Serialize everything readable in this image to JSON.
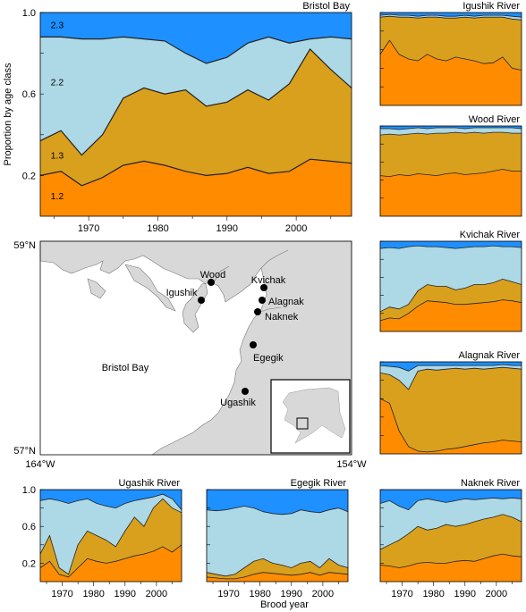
{
  "figure": {
    "ylabel": "Proportion by age class",
    "xlabel": "Brood year"
  },
  "colors": {
    "age_1_2": "#ff8c00",
    "age_1_3": "#d9a01e",
    "age_2_2": "#add8e6",
    "age_2_3": "#1e90ff",
    "land": "#d8d8d8",
    "water": "#ffffff"
  },
  "chart_data": [
    {
      "id": "bristol",
      "type": "area",
      "title": "Bristol Bay",
      "ylim": [
        0,
        1
      ],
      "yticks": [
        "0.2",
        "0.6",
        "1.0"
      ],
      "xlim": [
        1963,
        2008
      ],
      "xticks": [
        "1970",
        "1980",
        "1990",
        "2000"
      ],
      "band_labels": [
        "1.2",
        "1.3",
        "2.2",
        "2.3"
      ],
      "x": [
        1963,
        1966,
        1969,
        1972,
        1975,
        1978,
        1981,
        1984,
        1987,
        1990,
        1993,
        1996,
        1999,
        2002,
        2005,
        2008
      ],
      "series": [
        {
          "name": "1.2",
          "cum": [
            0.2,
            0.22,
            0.15,
            0.19,
            0.25,
            0.27,
            0.25,
            0.22,
            0.2,
            0.21,
            0.24,
            0.21,
            0.22,
            0.28,
            0.27,
            0.26
          ]
        },
        {
          "name": "1.3",
          "cum": [
            0.37,
            0.42,
            0.3,
            0.4,
            0.58,
            0.63,
            0.6,
            0.62,
            0.54,
            0.56,
            0.62,
            0.57,
            0.65,
            0.82,
            0.72,
            0.63
          ]
        },
        {
          "name": "2.2",
          "cum": [
            0.88,
            0.88,
            0.87,
            0.87,
            0.88,
            0.87,
            0.86,
            0.8,
            0.75,
            0.78,
            0.85,
            0.88,
            0.85,
            0.87,
            0.88,
            0.87
          ]
        },
        {
          "name": "2.3",
          "cum": [
            1,
            1,
            1,
            1,
            1,
            1,
            1,
            1,
            1,
            1,
            1,
            1,
            1,
            1,
            1,
            1
          ]
        }
      ]
    },
    {
      "id": "igushik",
      "type": "area",
      "title": "Igushik River",
      "ylim": [
        0,
        1
      ],
      "xlim": [
        1963,
        2008
      ],
      "x": [
        1963,
        1966,
        1969,
        1972,
        1975,
        1978,
        1981,
        1984,
        1987,
        1990,
        1993,
        1996,
        1999,
        2002,
        2005,
        2008
      ],
      "series": [
        {
          "name": "1.2",
          "cum": [
            0.55,
            0.7,
            0.55,
            0.5,
            0.48,
            0.55,
            0.5,
            0.48,
            0.52,
            0.5,
            0.48,
            0.45,
            0.46,
            0.52,
            0.4,
            0.38
          ]
        },
        {
          "name": "1.3",
          "cum": [
            0.95,
            0.96,
            0.95,
            0.95,
            0.94,
            0.95,
            0.95,
            0.94,
            0.94,
            0.95,
            0.94,
            0.95,
            0.95,
            0.95,
            0.93,
            0.92
          ]
        },
        {
          "name": "2.2",
          "cum": [
            0.97,
            0.98,
            0.97,
            0.97,
            0.96,
            0.97,
            0.97,
            0.96,
            0.96,
            0.97,
            0.96,
            0.97,
            0.97,
            0.97,
            0.96,
            0.95
          ]
        },
        {
          "name": "2.3",
          "cum": [
            1,
            1,
            1,
            1,
            1,
            1,
            1,
            1,
            1,
            1,
            1,
            1,
            1,
            1,
            1,
            1
          ]
        }
      ]
    },
    {
      "id": "wood",
      "type": "area",
      "title": "Wood River",
      "ylim": [
        0,
        1
      ],
      "xlim": [
        1963,
        2008
      ],
      "x": [
        1963,
        1966,
        1969,
        1972,
        1975,
        1978,
        1981,
        1984,
        1987,
        1990,
        1993,
        1996,
        1999,
        2002,
        2005,
        2008
      ],
      "series": [
        {
          "name": "1.2",
          "cum": [
            0.45,
            0.44,
            0.46,
            0.45,
            0.47,
            0.46,
            0.45,
            0.47,
            0.48,
            0.46,
            0.47,
            0.48,
            0.5,
            0.52,
            0.5,
            0.5
          ]
        },
        {
          "name": "1.3",
          "cum": [
            0.9,
            0.91,
            0.9,
            0.91,
            0.92,
            0.91,
            0.92,
            0.92,
            0.93,
            0.92,
            0.93,
            0.92,
            0.93,
            0.93,
            0.92,
            0.92
          ]
        },
        {
          "name": "2.2",
          "cum": [
            0.97,
            0.97,
            0.96,
            0.97,
            0.98,
            0.97,
            0.98,
            0.98,
            0.98,
            0.97,
            0.98,
            0.98,
            0.98,
            0.98,
            0.98,
            0.97
          ]
        },
        {
          "name": "2.3",
          "cum": [
            1,
            1,
            1,
            1,
            1,
            1,
            1,
            1,
            1,
            1,
            1,
            1,
            1,
            1,
            1,
            1
          ]
        }
      ]
    },
    {
      "id": "kvichak",
      "type": "area",
      "title": "Kvichak River",
      "ylim": [
        0,
        1
      ],
      "xlim": [
        1963,
        2008
      ],
      "x": [
        1963,
        1966,
        1969,
        1972,
        1975,
        1978,
        1981,
        1984,
        1987,
        1990,
        1993,
        1996,
        1999,
        2002,
        2005,
        2008
      ],
      "series": [
        {
          "name": "1.2",
          "cum": [
            0.12,
            0.15,
            0.14,
            0.2,
            0.28,
            0.34,
            0.33,
            0.32,
            0.3,
            0.3,
            0.31,
            0.32,
            0.33,
            0.35,
            0.34,
            0.32
          ]
        },
        {
          "name": "1.3",
          "cum": [
            0.22,
            0.27,
            0.25,
            0.3,
            0.45,
            0.52,
            0.5,
            0.5,
            0.46,
            0.48,
            0.52,
            0.52,
            0.54,
            0.58,
            0.55,
            0.52
          ]
        },
        {
          "name": "2.2",
          "cum": [
            0.92,
            0.93,
            0.92,
            0.94,
            0.95,
            0.94,
            0.94,
            0.93,
            0.92,
            0.93,
            0.94,
            0.94,
            0.95,
            0.94,
            0.94,
            0.93
          ]
        },
        {
          "name": "2.3",
          "cum": [
            1,
            1,
            1,
            1,
            1,
            1,
            1,
            1,
            1,
            1,
            1,
            1,
            1,
            1,
            1,
            1
          ]
        }
      ]
    },
    {
      "id": "alagnak",
      "type": "area",
      "title": "Alagnak River",
      "ylim": [
        0,
        1
      ],
      "xlim": [
        1963,
        2008
      ],
      "x": [
        1963,
        1966,
        1969,
        1972,
        1975,
        1978,
        1981,
        1984,
        1987,
        1990,
        1993,
        1996,
        1999,
        2002,
        2005,
        2008
      ],
      "series": [
        {
          "name": "1.2",
          "cum": [
            0.6,
            0.55,
            0.25,
            0.08,
            0.03,
            0.02,
            0.03,
            0.05,
            0.06,
            0.08,
            0.1,
            0.12,
            0.13,
            0.15,
            0.14,
            0.13
          ]
        },
        {
          "name": "1.3",
          "cum": [
            0.88,
            0.86,
            0.8,
            0.7,
            0.9,
            0.92,
            0.91,
            0.92,
            0.93,
            0.92,
            0.93,
            0.92,
            0.93,
            0.94,
            0.93,
            0.92
          ]
        },
        {
          "name": "2.2",
          "cum": [
            0.96,
            0.95,
            0.94,
            0.9,
            0.96,
            0.96,
            0.96,
            0.96,
            0.96,
            0.96,
            0.96,
            0.96,
            0.96,
            0.97,
            0.96,
            0.96
          ]
        },
        {
          "name": "2.3",
          "cum": [
            1,
            1,
            1,
            1,
            1,
            1,
            1,
            1,
            1,
            1,
            1,
            1,
            1,
            1,
            1,
            1
          ]
        }
      ]
    },
    {
      "id": "ugashik",
      "type": "area",
      "title": "Ugashik River",
      "ylim": [
        0,
        1
      ],
      "yticks": [
        "0.2",
        "0.6",
        "1.0"
      ],
      "xlim": [
        1963,
        2008
      ],
      "xticks": [
        "1970",
        "1980",
        "1990",
        "2000"
      ],
      "x": [
        1963,
        1966,
        1969,
        1972,
        1975,
        1978,
        1981,
        1984,
        1987,
        1990,
        1993,
        1996,
        1999,
        2002,
        2005,
        2008
      ],
      "series": [
        {
          "name": "1.2",
          "cum": [
            0.15,
            0.22,
            0.08,
            0.05,
            0.15,
            0.25,
            0.22,
            0.2,
            0.22,
            0.25,
            0.28,
            0.3,
            0.33,
            0.38,
            0.32,
            0.4
          ]
        },
        {
          "name": "1.3",
          "cum": [
            0.3,
            0.5,
            0.15,
            0.08,
            0.4,
            0.55,
            0.5,
            0.45,
            0.38,
            0.55,
            0.7,
            0.6,
            0.8,
            0.9,
            0.8,
            0.75
          ]
        },
        {
          "name": "2.2",
          "cum": [
            0.88,
            0.9,
            0.88,
            0.85,
            0.88,
            0.9,
            0.85,
            0.82,
            0.8,
            0.85,
            0.88,
            0.9,
            0.92,
            0.95,
            0.9,
            0.78
          ]
        },
        {
          "name": "2.3",
          "cum": [
            1,
            1,
            1,
            1,
            1,
            1,
            1,
            1,
            1,
            1,
            1,
            1,
            1,
            1,
            1,
            1
          ]
        }
      ]
    },
    {
      "id": "egegik",
      "type": "area",
      "title": "Egegik River",
      "ylim": [
        0,
        1
      ],
      "xlim": [
        1963,
        2008
      ],
      "xticks": [
        "1970",
        "1980",
        "1990",
        "2000"
      ],
      "x": [
        1963,
        1966,
        1969,
        1972,
        1975,
        1978,
        1981,
        1984,
        1987,
        1990,
        1993,
        1996,
        1999,
        2002,
        2005,
        2008
      ],
      "series": [
        {
          "name": "1.2",
          "cum": [
            0.05,
            0.04,
            0.03,
            0.03,
            0.05,
            0.08,
            0.1,
            0.09,
            0.08,
            0.07,
            0.08,
            0.1,
            0.07,
            0.1,
            0.09,
            0.08
          ]
        },
        {
          "name": "1.3",
          "cum": [
            0.1,
            0.08,
            0.06,
            0.08,
            0.15,
            0.22,
            0.25,
            0.2,
            0.18,
            0.15,
            0.2,
            0.22,
            0.15,
            0.25,
            0.18,
            0.15
          ]
        },
        {
          "name": "2.2",
          "cum": [
            0.78,
            0.77,
            0.78,
            0.8,
            0.82,
            0.8,
            0.76,
            0.74,
            0.73,
            0.74,
            0.78,
            0.76,
            0.75,
            0.78,
            0.8,
            0.76
          ]
        },
        {
          "name": "2.3",
          "cum": [
            1,
            1,
            1,
            1,
            1,
            1,
            1,
            1,
            1,
            1,
            1,
            1,
            1,
            1,
            1,
            1
          ]
        }
      ]
    },
    {
      "id": "naknek",
      "type": "area",
      "title": "Naknek River",
      "ylim": [
        0,
        1
      ],
      "xlim": [
        1963,
        2008
      ],
      "xticks": [
        "1970",
        "1980",
        "1990",
        "2000"
      ],
      "x": [
        1963,
        1966,
        1969,
        1972,
        1975,
        1978,
        1981,
        1984,
        1987,
        1990,
        1993,
        1996,
        1999,
        2002,
        2005,
        2008
      ],
      "series": [
        {
          "name": "1.2",
          "cum": [
            0.18,
            0.17,
            0.15,
            0.17,
            0.2,
            0.21,
            0.2,
            0.2,
            0.22,
            0.23,
            0.22,
            0.25,
            0.28,
            0.3,
            0.28,
            0.27
          ]
        },
        {
          "name": "1.3",
          "cum": [
            0.35,
            0.4,
            0.45,
            0.52,
            0.6,
            0.56,
            0.58,
            0.62,
            0.6,
            0.62,
            0.65,
            0.68,
            0.7,
            0.73,
            0.7,
            0.65
          ]
        },
        {
          "name": "2.2",
          "cum": [
            0.85,
            0.88,
            0.82,
            0.78,
            0.88,
            0.9,
            0.88,
            0.86,
            0.88,
            0.9,
            0.89,
            0.9,
            0.91,
            0.9,
            0.91,
            0.9
          ]
        },
        {
          "name": "2.3",
          "cum": [
            1,
            1,
            1,
            1,
            1,
            1,
            1,
            1,
            1,
            1,
            1,
            1,
            1,
            1,
            1,
            1
          ]
        }
      ]
    }
  ],
  "map": {
    "lat_labels": [
      "59°N",
      "57°N"
    ],
    "lon_labels": [
      "164°W",
      "154°W"
    ],
    "water_label": "Bristol Bay",
    "sites": [
      {
        "name": "Wood",
        "lon": -158.6,
        "lat": 58.65
      },
      {
        "name": "Igushik",
        "lon": -158.9,
        "lat": 58.55
      },
      {
        "name": "Kvichak",
        "lon": -157.4,
        "lat": 58.6
      },
      {
        "name": "Alagnak",
        "lon": -157.45,
        "lat": 58.52
      },
      {
        "name": "Naknek",
        "lon": -157.5,
        "lat": 58.42
      },
      {
        "name": "Egegik",
        "lon": -157.8,
        "lat": 58.1
      },
      {
        "name": "Ugashik",
        "lon": -158.0,
        "lat": 57.55
      }
    ]
  }
}
